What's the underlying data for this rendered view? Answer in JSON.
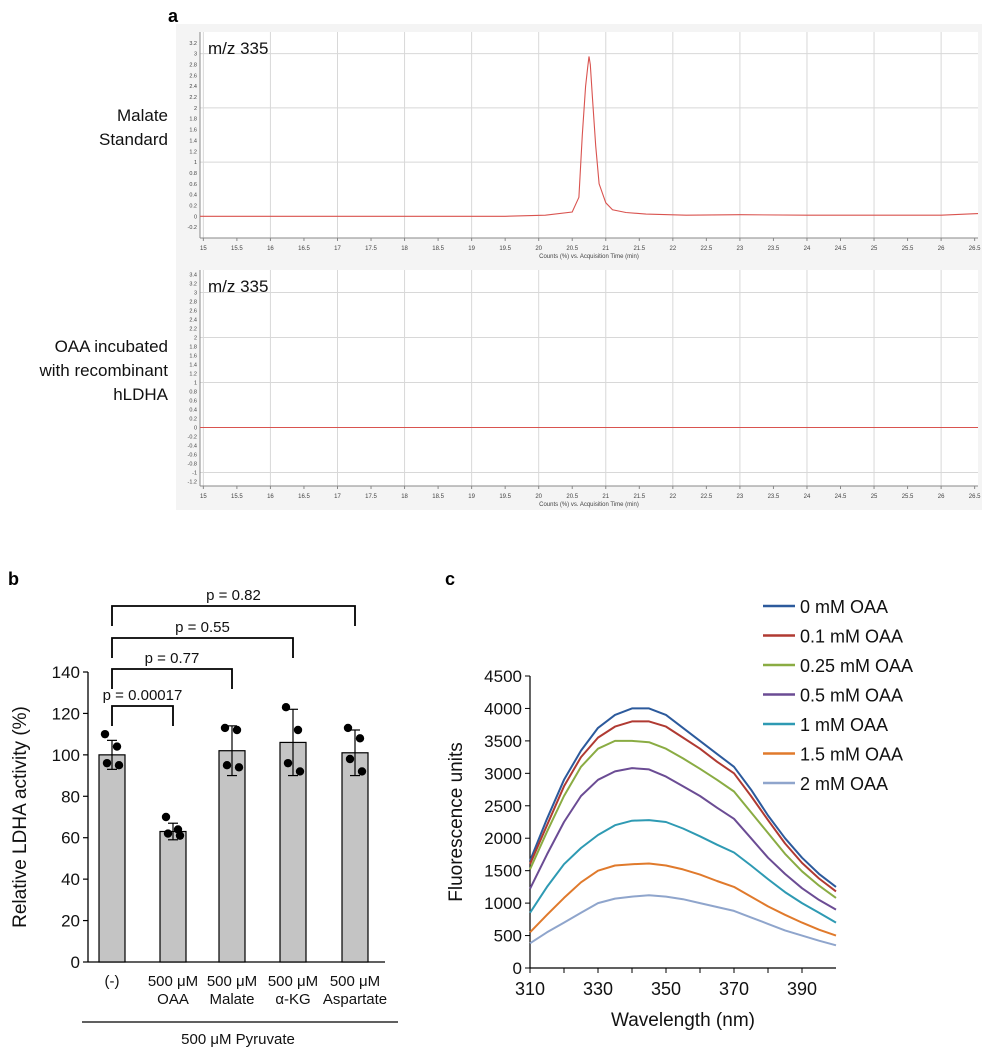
{
  "panel_labels": {
    "a": "a",
    "b": "b",
    "c": "c"
  },
  "colors": {
    "trace": "#d9534f",
    "bar": "#c4c4c4",
    "grid": "#d8d8d8"
  },
  "chart_data": [
    {
      "id": "a-top",
      "type": "line",
      "row_label": [
        "Malate",
        "Standard"
      ],
      "ion_label": "m/z 335",
      "xlabel": "Counts (%) vs. Acquisition Time (min)",
      "xlim": [
        14.95,
        26.55
      ],
      "ylim": [
        -0.4,
        3.4
      ],
      "xticks": [
        "15",
        "15.5",
        "16",
        "16.5",
        "17",
        "17.5",
        "18",
        "18.5",
        "19",
        "19.5",
        "20",
        "20.5",
        "21",
        "21.5",
        "22",
        "22.5",
        "23",
        "23.5",
        "24",
        "24.5",
        "25",
        "25.5",
        "26",
        "26.5"
      ],
      "yticks": [
        "-0.2",
        "0",
        "0.2",
        "0.4",
        "0.6",
        "0.8",
        "1",
        "1.2",
        "1.4",
        "1.6",
        "1.8",
        "2",
        "2.2",
        "2.4",
        "2.6",
        "2.8",
        "3",
        "3.2"
      ],
      "x": [
        14.95,
        19.5,
        20.1,
        20.5,
        20.6,
        20.65,
        20.7,
        20.73,
        20.75,
        20.77,
        20.8,
        20.85,
        20.9,
        21.0,
        21.1,
        21.3,
        21.6,
        22.2,
        23.0,
        24.0,
        25.0,
        26.0,
        26.55
      ],
      "y": [
        0.0,
        0.0,
        0.02,
        0.08,
        0.35,
        1.5,
        2.4,
        2.75,
        2.95,
        2.8,
        2.2,
        1.3,
        0.6,
        0.25,
        0.12,
        0.07,
        0.04,
        0.02,
        0.03,
        0.02,
        0.02,
        0.02,
        0.05
      ]
    },
    {
      "id": "a-bottom",
      "type": "line",
      "row_label": [
        "OAA incubated",
        "with recombinant",
        "hLDHA"
      ],
      "ion_label": "m/z 335",
      "xlabel": "Counts (%) vs. Acquisition Time (min)",
      "xlim": [
        14.95,
        26.55
      ],
      "ylim": [
        -1.3,
        3.5
      ],
      "xticks": [
        "15",
        "15.5",
        "16",
        "16.5",
        "17",
        "17.5",
        "18",
        "18.5",
        "19",
        "19.5",
        "20",
        "20.5",
        "21",
        "21.5",
        "22",
        "22.5",
        "23",
        "23.5",
        "24",
        "24.5",
        "25",
        "25.5",
        "26",
        "26.5"
      ],
      "yticks": [
        "-1.2",
        "-1",
        "-0.8",
        "-0.6",
        "-0.4",
        "-0.2",
        "0",
        "0.2",
        "0.4",
        "0.6",
        "0.8",
        "1",
        "1.2",
        "1.4",
        "1.6",
        "1.8",
        "2",
        "2.2",
        "2.4",
        "2.6",
        "2.8",
        "3",
        "3.2",
        "3.4"
      ],
      "x": [
        14.95,
        26.55
      ],
      "y": [
        0,
        0
      ]
    },
    {
      "id": "b",
      "type": "bar",
      "ylabel": "Relative LDHA activity (%)",
      "ylim": [
        0,
        140
      ],
      "yticks": [
        0,
        20,
        40,
        60,
        80,
        100,
        120,
        140
      ],
      "categories": [
        [
          "(-)"
        ],
        [
          "500 μM",
          "OAA"
        ],
        [
          "500 μM",
          "Malate"
        ],
        [
          "500 μM",
          "α-KG"
        ],
        [
          "500 μM",
          "Aspartate"
        ]
      ],
      "values": [
        100,
        63,
        102,
        106,
        101
      ],
      "errors": [
        7,
        4,
        12,
        16,
        11
      ],
      "points": [
        [
          110,
          104,
          96,
          95
        ],
        [
          70,
          64,
          62,
          61
        ],
        [
          113,
          112,
          95,
          94
        ],
        [
          123,
          112,
          96,
          92
        ],
        [
          113,
          108,
          98,
          92
        ]
      ],
      "group_label": "500 μM Pyruvate",
      "comparisons": [
        {
          "from": 0,
          "to": 1,
          "label": "p = 0.00017"
        },
        {
          "from": 0,
          "to": 2,
          "label": "p = 0.77"
        },
        {
          "from": 0,
          "to": 3,
          "label": "p = 0.55"
        },
        {
          "from": 0,
          "to": 4,
          "label": "p = 0.82"
        }
      ]
    },
    {
      "id": "c",
      "type": "line",
      "xlabel": "Wavelength (nm)",
      "ylabel": "Fluorescence units",
      "xlim": [
        310,
        400
      ],
      "ylim": [
        0,
        4500
      ],
      "xticks": [
        310,
        330,
        350,
        370,
        390
      ],
      "yticks": [
        0,
        500,
        1000,
        1500,
        2000,
        2500,
        3000,
        3500,
        4000,
        4500
      ],
      "x": [
        310,
        315,
        320,
        325,
        330,
        335,
        340,
        345,
        350,
        355,
        360,
        365,
        370,
        375,
        380,
        385,
        390,
        395,
        400
      ],
      "series": [
        {
          "name": "0 mM OAA",
          "color": "#2c5a9c",
          "values": [
            1650,
            2300,
            2900,
            3350,
            3700,
            3900,
            4000,
            4000,
            3900,
            3700,
            3500,
            3300,
            3100,
            2750,
            2350,
            2000,
            1700,
            1450,
            1250
          ]
        },
        {
          "name": "0.1 mM OAA",
          "color": "#b03a32",
          "values": [
            1600,
            2200,
            2800,
            3250,
            3550,
            3720,
            3800,
            3800,
            3720,
            3550,
            3380,
            3180,
            3000,
            2650,
            2280,
            1920,
            1620,
            1380,
            1180
          ]
        },
        {
          "name": "0.25 mM OAA",
          "color": "#8aac43",
          "values": [
            1520,
            2100,
            2650,
            3100,
            3380,
            3500,
            3500,
            3480,
            3380,
            3230,
            3070,
            2900,
            2720,
            2400,
            2080,
            1760,
            1490,
            1270,
            1080
          ]
        },
        {
          "name": "0.5 mM OAA",
          "color": "#6b4c94",
          "values": [
            1220,
            1750,
            2250,
            2650,
            2900,
            3030,
            3080,
            3060,
            2950,
            2800,
            2650,
            2470,
            2300,
            2000,
            1700,
            1450,
            1230,
            1050,
            900
          ]
        },
        {
          "name": "1 mM OAA",
          "color": "#2e9ab3",
          "values": [
            850,
            1250,
            1600,
            1850,
            2050,
            2200,
            2270,
            2280,
            2250,
            2150,
            2030,
            1900,
            1780,
            1580,
            1370,
            1170,
            1000,
            850,
            700
          ]
        },
        {
          "name": "1.5 mM OAA",
          "color": "#e07a2c",
          "values": [
            550,
            820,
            1080,
            1320,
            1500,
            1580,
            1600,
            1610,
            1580,
            1520,
            1440,
            1340,
            1250,
            1100,
            950,
            820,
            700,
            590,
            500
          ]
        },
        {
          "name": "2 mM OAA",
          "color": "#8fa5cc",
          "values": [
            380,
            550,
            700,
            850,
            1000,
            1070,
            1100,
            1120,
            1100,
            1060,
            1000,
            940,
            880,
            780,
            680,
            580,
            500,
            420,
            350
          ]
        }
      ]
    }
  ]
}
